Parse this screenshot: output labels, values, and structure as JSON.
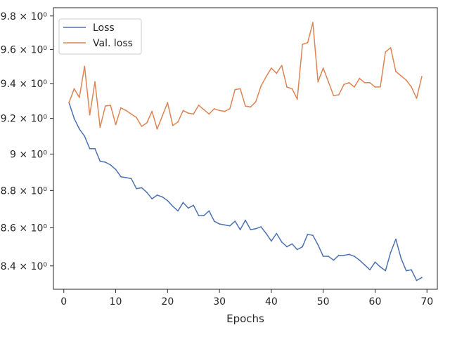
{
  "chart_data": {
    "type": "line",
    "title": "",
    "xlabel": "Epochs",
    "ylabel": "",
    "xlim": [
      -2,
      72
    ],
    "ylim": [
      8.28,
      9.85
    ],
    "yscale": "log",
    "grid": false,
    "legend_position": "top-left",
    "x_ticks": [
      0,
      10,
      20,
      30,
      40,
      50,
      60,
      70
    ],
    "y_ticks": [
      {
        "value": 8.4,
        "label": "8.4 × 10⁰"
      },
      {
        "value": 8.6,
        "label": "8.6 × 10⁰"
      },
      {
        "value": 8.8,
        "label": "8.8 × 10⁰"
      },
      {
        "value": 9.0,
        "label": "9 × 10⁰"
      },
      {
        "value": 9.2,
        "label": "9.2 × 10⁰"
      },
      {
        "value": 9.4,
        "label": "9.4 × 10⁰"
      },
      {
        "value": 9.6,
        "label": "9.6 × 10⁰"
      },
      {
        "value": 9.8,
        "label": "9.8 × 10⁰"
      }
    ],
    "x": [
      1,
      2,
      3,
      4,
      5,
      6,
      7,
      8,
      9,
      10,
      11,
      12,
      13,
      14,
      15,
      16,
      17,
      18,
      19,
      20,
      21,
      22,
      23,
      24,
      25,
      26,
      27,
      28,
      29,
      30,
      31,
      32,
      33,
      34,
      35,
      36,
      37,
      38,
      39,
      40,
      41,
      42,
      43,
      44,
      45,
      46,
      47,
      48,
      49,
      50,
      51,
      52,
      53,
      54,
      55,
      56,
      57,
      58,
      59,
      60,
      61,
      62,
      63,
      64,
      65,
      66,
      67,
      68,
      69
    ],
    "series": [
      {
        "name": "Loss",
        "color": "#4c72b0",
        "values": [
          9.29,
          9.2,
          9.14,
          9.1,
          9.03,
          9.03,
          8.96,
          8.955,
          8.94,
          8.915,
          8.875,
          8.87,
          8.865,
          8.81,
          8.815,
          8.79,
          8.755,
          8.775,
          8.765,
          8.745,
          8.715,
          8.69,
          8.735,
          8.705,
          8.72,
          8.665,
          8.665,
          8.69,
          8.635,
          8.62,
          8.615,
          8.61,
          8.635,
          8.59,
          8.64,
          8.59,
          8.595,
          8.605,
          8.57,
          8.53,
          8.57,
          8.525,
          8.5,
          8.515,
          8.485,
          8.5,
          8.565,
          8.56,
          8.51,
          8.45,
          8.45,
          8.43,
          8.455,
          8.455,
          8.46,
          8.45,
          8.43,
          8.405,
          8.38,
          8.42,
          8.395,
          8.375,
          8.47,
          8.54,
          8.44,
          8.375,
          8.38,
          8.325,
          8.34
        ]
      },
      {
        "name": "Val. loss",
        "color": "#dd8452",
        "values": [
          9.29,
          9.37,
          9.32,
          9.5,
          9.22,
          9.41,
          9.15,
          9.27,
          9.275,
          9.165,
          9.26,
          9.245,
          9.225,
          9.205,
          9.155,
          9.175,
          9.24,
          9.14,
          9.215,
          9.29,
          9.16,
          9.18,
          9.245,
          9.23,
          9.225,
          9.275,
          9.25,
          9.225,
          9.255,
          9.245,
          9.24,
          9.255,
          9.365,
          9.37,
          9.27,
          9.265,
          9.295,
          9.385,
          9.44,
          9.49,
          9.46,
          9.505,
          9.38,
          9.37,
          9.31,
          9.63,
          9.64,
          9.76,
          9.41,
          9.49,
          9.41,
          9.33,
          9.335,
          9.395,
          9.405,
          9.38,
          9.43,
          9.405,
          9.405,
          9.38,
          9.38,
          9.585,
          9.61,
          9.47,
          9.445,
          9.42,
          9.38,
          9.315,
          9.44
        ]
      }
    ]
  }
}
